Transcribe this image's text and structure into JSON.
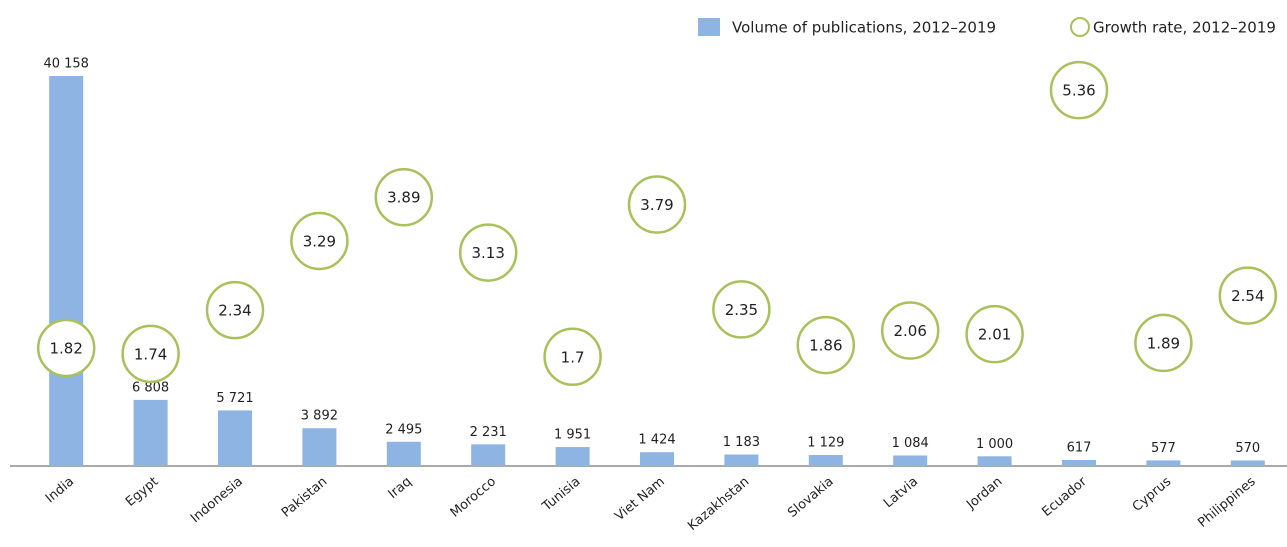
{
  "chart_data": {
    "type": "bar",
    "categories": [
      "India",
      "Egypt",
      "Indonesia",
      "Pakistan",
      "Iraq",
      "Morocco",
      "Tunisia",
      "Viet Nam",
      "Kazakhstan",
      "Slovakia",
      "Latvia",
      "Jordan",
      "Ecuador",
      "Cyprus",
      "Philippines"
    ],
    "series": [
      {
        "name": "Volume of publications, 2012–2019",
        "color": "#8db4e2",
        "values": [
          40158,
          6808,
          5721,
          3892,
          2495,
          2231,
          1951,
          1424,
          1183,
          1129,
          1084,
          1000,
          617,
          577,
          570
        ],
        "value_labels": [
          "40 158",
          "6 808",
          "5 721",
          "3 892",
          "2 495",
          "2 231",
          "1 951",
          "1 424",
          "1 183",
          "1 129",
          "1 084",
          "1 000",
          "617",
          "577",
          "570"
        ]
      },
      {
        "name": "Growth rate, 2012–2019",
        "color": "#a9c15a",
        "axis": "y2",
        "values": [
          1.82,
          1.74,
          2.34,
          3.29,
          3.89,
          3.13,
          1.7,
          3.79,
          2.35,
          1.86,
          2.06,
          2.01,
          5.36,
          1.89,
          2.54
        ]
      }
    ],
    "ylim": [
      0,
      45000
    ],
    "y2lim": [
      0.2,
      6.2
    ],
    "legend": "top-right"
  }
}
